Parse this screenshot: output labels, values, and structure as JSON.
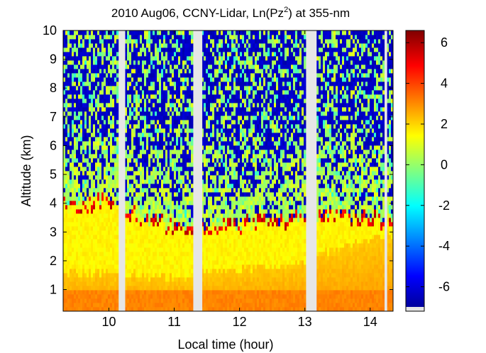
{
  "chart_data": {
    "type": "heatmap",
    "title": {
      "prefix": "2010 Aug06, CCNY-Lidar, Ln(Pz",
      "superscript": "2",
      "suffix": ") at 355-nm"
    },
    "xlabel": "Local time (hour)",
    "ylabel": "Altitude (km)",
    "xlim": [
      9.3,
      14.35
    ],
    "ylim": [
      0.25,
      10
    ],
    "xticks": [
      10,
      11,
      12,
      13,
      14
    ],
    "yticks": [
      1,
      2,
      3,
      4,
      5,
      6,
      7,
      8,
      9,
      10
    ],
    "colorbar": {
      "label": "",
      "range": [
        -7.2,
        6.6
      ],
      "ticks": [
        6,
        4,
        2,
        0,
        -2,
        -4,
        -6
      ],
      "tick_labels": [
        "6",
        "4",
        "2",
        "0",
        "-2",
        "-4",
        "-6"
      ],
      "colormap": [
        "#00008f",
        "#0000ff",
        "#0080ff",
        "#00ffff",
        "#80ff80",
        "#ffff00",
        "#ff8000",
        "#ff0000",
        "#800000"
      ]
    },
    "data_gaps_hours": [
      [
        10.15,
        10.25
      ],
      [
        11.3,
        11.43
      ],
      [
        13.03,
        13.18
      ],
      [
        14.22,
        14.26
      ]
    ],
    "aerosol_layer_top_km": {
      "time": [
        9.3,
        9.5,
        9.7,
        9.9,
        10.1,
        10.3,
        10.6,
        10.9,
        11.2,
        11.45,
        11.7,
        12.0,
        12.3,
        12.6,
        12.9,
        13.2,
        13.5,
        13.8,
        14.1,
        14.35
      ],
      "altitude": [
        4.0,
        3.85,
        4.0,
        4.1,
        4.0,
        3.7,
        3.4,
        3.2,
        3.1,
        3.15,
        3.2,
        3.25,
        3.3,
        3.4,
        3.5,
        3.5,
        3.5,
        3.45,
        3.4,
        3.35
      ]
    },
    "boundary_layer_km": {
      "time": [
        9.3,
        9.7,
        10.1,
        10.5,
        10.9,
        11.3,
        11.45,
        11.8,
        12.2,
        12.6,
        13.0,
        13.2,
        13.5,
        13.8,
        14.1,
        14.35
      ],
      "altitude": [
        1.6,
        1.6,
        1.6,
        1.5,
        1.4,
        1.4,
        1.7,
        1.65,
        1.75,
        1.8,
        2.0,
        2.3,
        2.3,
        2.6,
        2.8,
        2.9
      ]
    }
  }
}
